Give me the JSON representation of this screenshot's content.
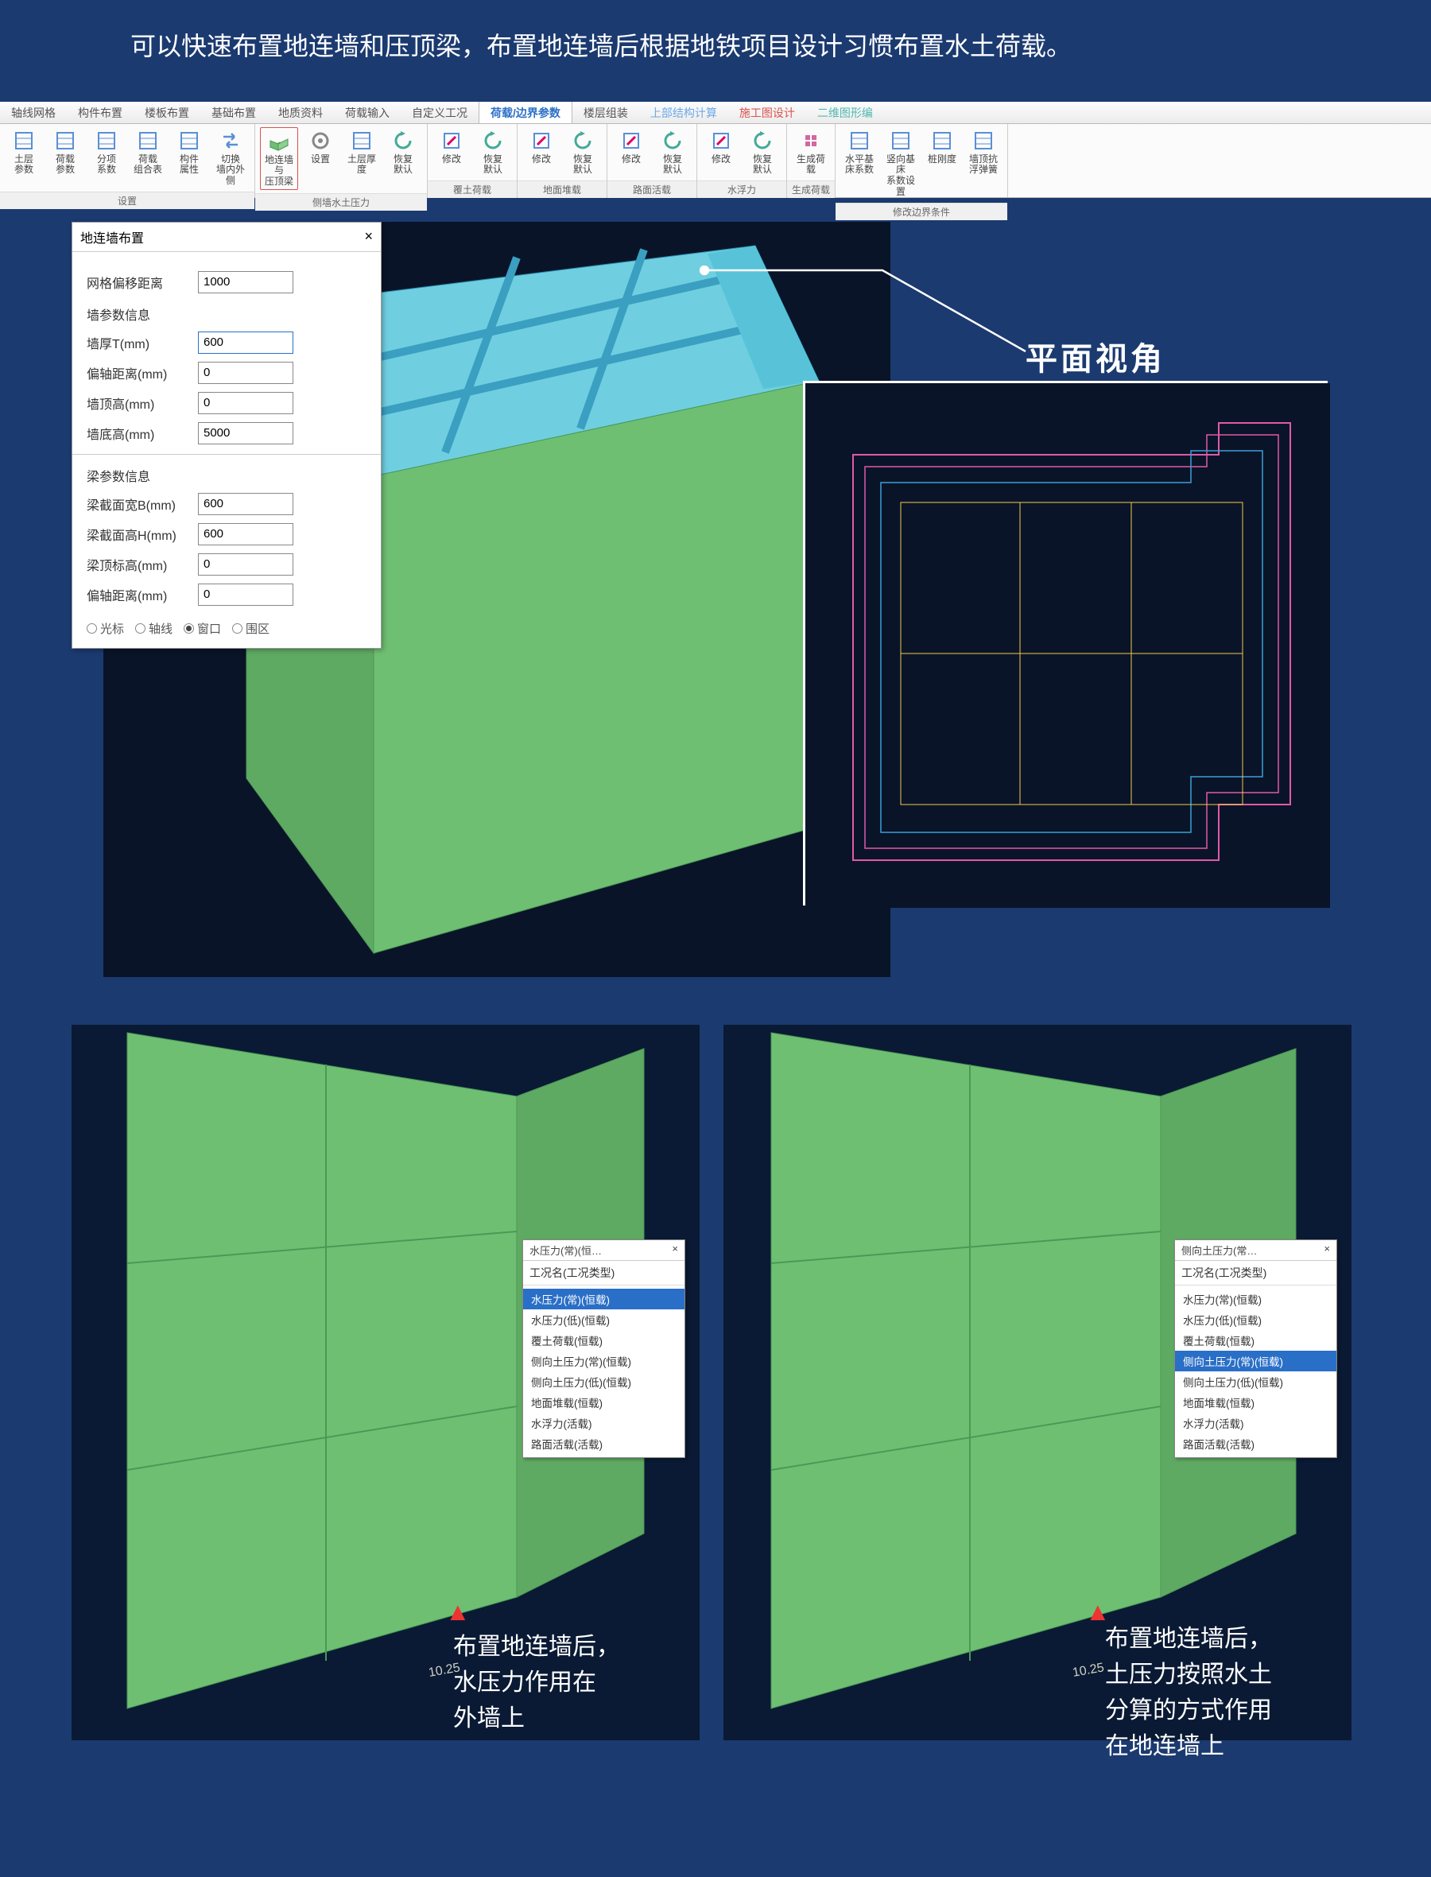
{
  "intro_text": "　　可以快速布置地连墙和压顶梁，布置地连墙后根据地铁项目设计习惯布置水土荷载。",
  "ribbon": {
    "tabs": [
      "轴线网格",
      "构件布置",
      "楼板布置",
      "基础布置",
      "地质资料",
      "荷载输入",
      "自定义工况",
      "荷载/边界参数",
      "楼层组装",
      "上部结构计算",
      "施工图设计",
      "二维图形编"
    ],
    "active_tab_index": 7,
    "groups": [
      {
        "label": "设置",
        "items": [
          {
            "name": "soil-params",
            "label": "土层\n参数"
          },
          {
            "name": "load-params",
            "label": "荷载\n参数"
          },
          {
            "name": "sub-coef",
            "label": "分项\n系数"
          },
          {
            "name": "load-combo",
            "label": "荷载\n组合表"
          },
          {
            "name": "member-attr",
            "label": "构件\n属性"
          },
          {
            "name": "switch-wall",
            "label": "切换\n墙内外侧"
          }
        ]
      },
      {
        "label": "侧墙水土压力",
        "items": [
          {
            "name": "diaphragm-wall",
            "label": "地连墙与\n压顶梁",
            "highlight": true
          },
          {
            "name": "settings",
            "label": "设置"
          },
          {
            "name": "soil-thickness",
            "label": "土层厚度"
          },
          {
            "name": "restore1",
            "label": "恢复\n默认"
          }
        ]
      },
      {
        "label": "覆土荷载",
        "items": [
          {
            "name": "modify1",
            "label": "修改"
          },
          {
            "name": "restore2",
            "label": "恢复\n默认"
          }
        ]
      },
      {
        "label": "地面堆载",
        "items": [
          {
            "name": "modify2",
            "label": "修改"
          },
          {
            "name": "restore3",
            "label": "恢复\n默认"
          }
        ]
      },
      {
        "label": "路面活载",
        "items": [
          {
            "name": "modify3",
            "label": "修改"
          },
          {
            "name": "restore4",
            "label": "恢复\n默认"
          }
        ]
      },
      {
        "label": "水浮力",
        "items": [
          {
            "name": "modify4",
            "label": "修改"
          },
          {
            "name": "restore5",
            "label": "恢复\n默认"
          }
        ]
      },
      {
        "label": "生成荷载",
        "items": [
          {
            "name": "gen-load",
            "label": "生成荷载"
          }
        ]
      },
      {
        "label": "修改边界条件",
        "items": [
          {
            "name": "horiz-coef",
            "label": "水平基床系数"
          },
          {
            "name": "vert-coef",
            "label": "竖向基床\n系数设置"
          },
          {
            "name": "pile-stiff",
            "label": "桩刚度"
          },
          {
            "name": "wall-spring",
            "label": "墙顶抗浮弹簧"
          }
        ]
      }
    ]
  },
  "dialog": {
    "title": "地连墙布置",
    "rows1": [
      {
        "label": "网格偏移距离",
        "value": "1000",
        "hl": false
      }
    ],
    "section1": "墙参数信息",
    "rows2": [
      {
        "label": "墙厚T(mm)",
        "value": "600",
        "hl": true
      },
      {
        "label": "偏轴距离(mm)",
        "value": "0"
      },
      {
        "label": "墙顶高(mm)",
        "value": "0"
      },
      {
        "label": "墙底高(mm)",
        "value": "5000"
      }
    ],
    "section2": "梁参数信息",
    "rows3": [
      {
        "label": "梁截面宽B(mm)",
        "value": "600"
      },
      {
        "label": "梁截面高H(mm)",
        "value": "600"
      },
      {
        "label": "梁顶标高(mm)",
        "value": "0"
      },
      {
        "label": "偏轴距离(mm)",
        "value": "0"
      }
    ],
    "radios": [
      "光标",
      "轴线",
      "窗口",
      "围区"
    ],
    "radio_sel": 2
  },
  "plan_label": "平面视角",
  "plan_colors": {
    "bg": "#0a1428",
    "stroke_outer": "#e05aa8",
    "stroke_mid": "#3aa0d8",
    "stroke_inner": "#f2c94c"
  },
  "model3d_colors": {
    "wall": "#6fbf73",
    "top": "#6fcfe0",
    "beam": "#5fb8d0",
    "accent": "#f2d24a",
    "bg": "#0a1428"
  },
  "left_panel": {
    "list_title": "水压力(常)(恒…",
    "header": "工况名(工况类型)",
    "items": [
      "水压力(常)(恒载)",
      "水压力(低)(恒载)",
      "覆土荷载(恒载)",
      "侧向土压力(常)(恒载)",
      "侧向土压力(低)(恒载)",
      "地面堆载(恒载)",
      "水浮力(活载)",
      "路面活载(活载)"
    ],
    "sel": 0,
    "caption": "布置地连墙后，\n水压力作用在\n外墙上"
  },
  "right_panel": {
    "list_title": "侧向土压力(常…",
    "header": "工况名(工况类型)",
    "items": [
      "水压力(常)(恒载)",
      "水压力(低)(恒载)",
      "覆土荷载(恒载)",
      "侧向土压力(常)(恒载)",
      "侧向土压力(低)(恒载)",
      "地面堆载(恒载)",
      "水浮力(活载)",
      "路面活载(活载)"
    ],
    "sel": 3,
    "caption": "布置地连墙后，\n土压力按照水土\n分算的方式作用\n在地连墙上"
  }
}
